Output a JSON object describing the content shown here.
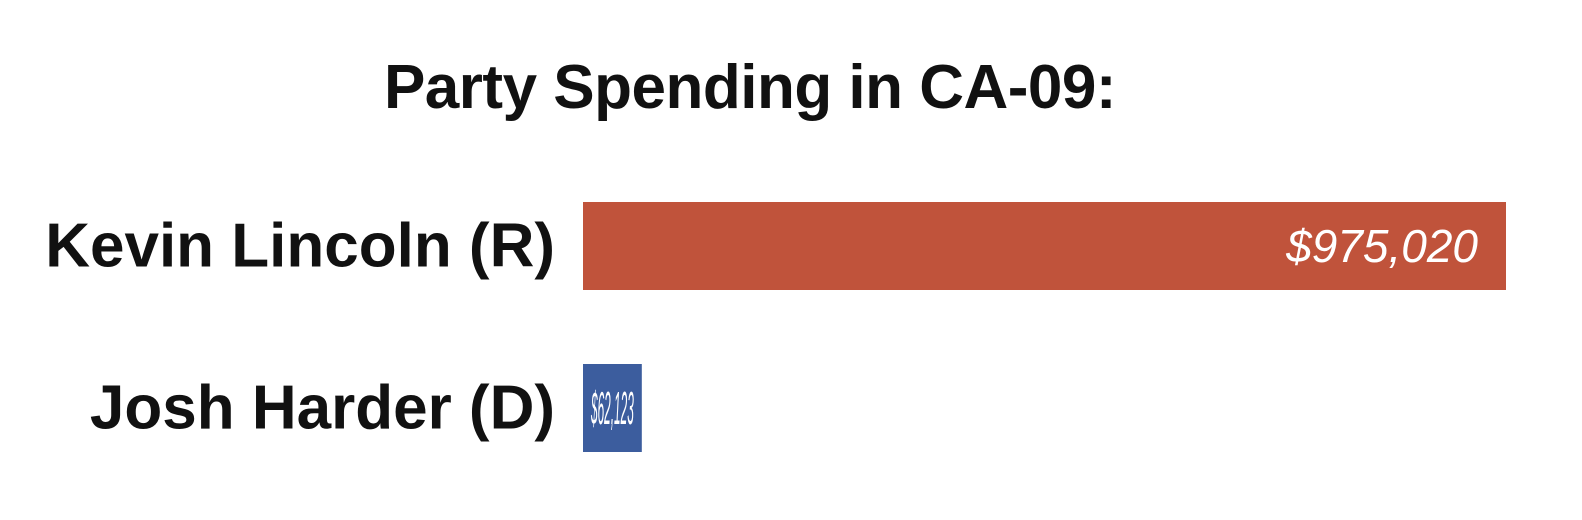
{
  "chart_data": {
    "type": "bar",
    "orientation": "horizontal",
    "title": "Party Spending in CA-09:",
    "categories": [
      "Kevin Lincoln (R)",
      "Josh Harder (D)"
    ],
    "values": [
      975020,
      62123
    ],
    "value_labels": [
      "$975,020",
      "$62,123"
    ],
    "colors": [
      "#c0533b",
      "#3c5d9e"
    ],
    "xlim": [
      0,
      975020
    ],
    "grid": false,
    "legend": "none",
    "xlabel": "",
    "ylabel": ""
  }
}
